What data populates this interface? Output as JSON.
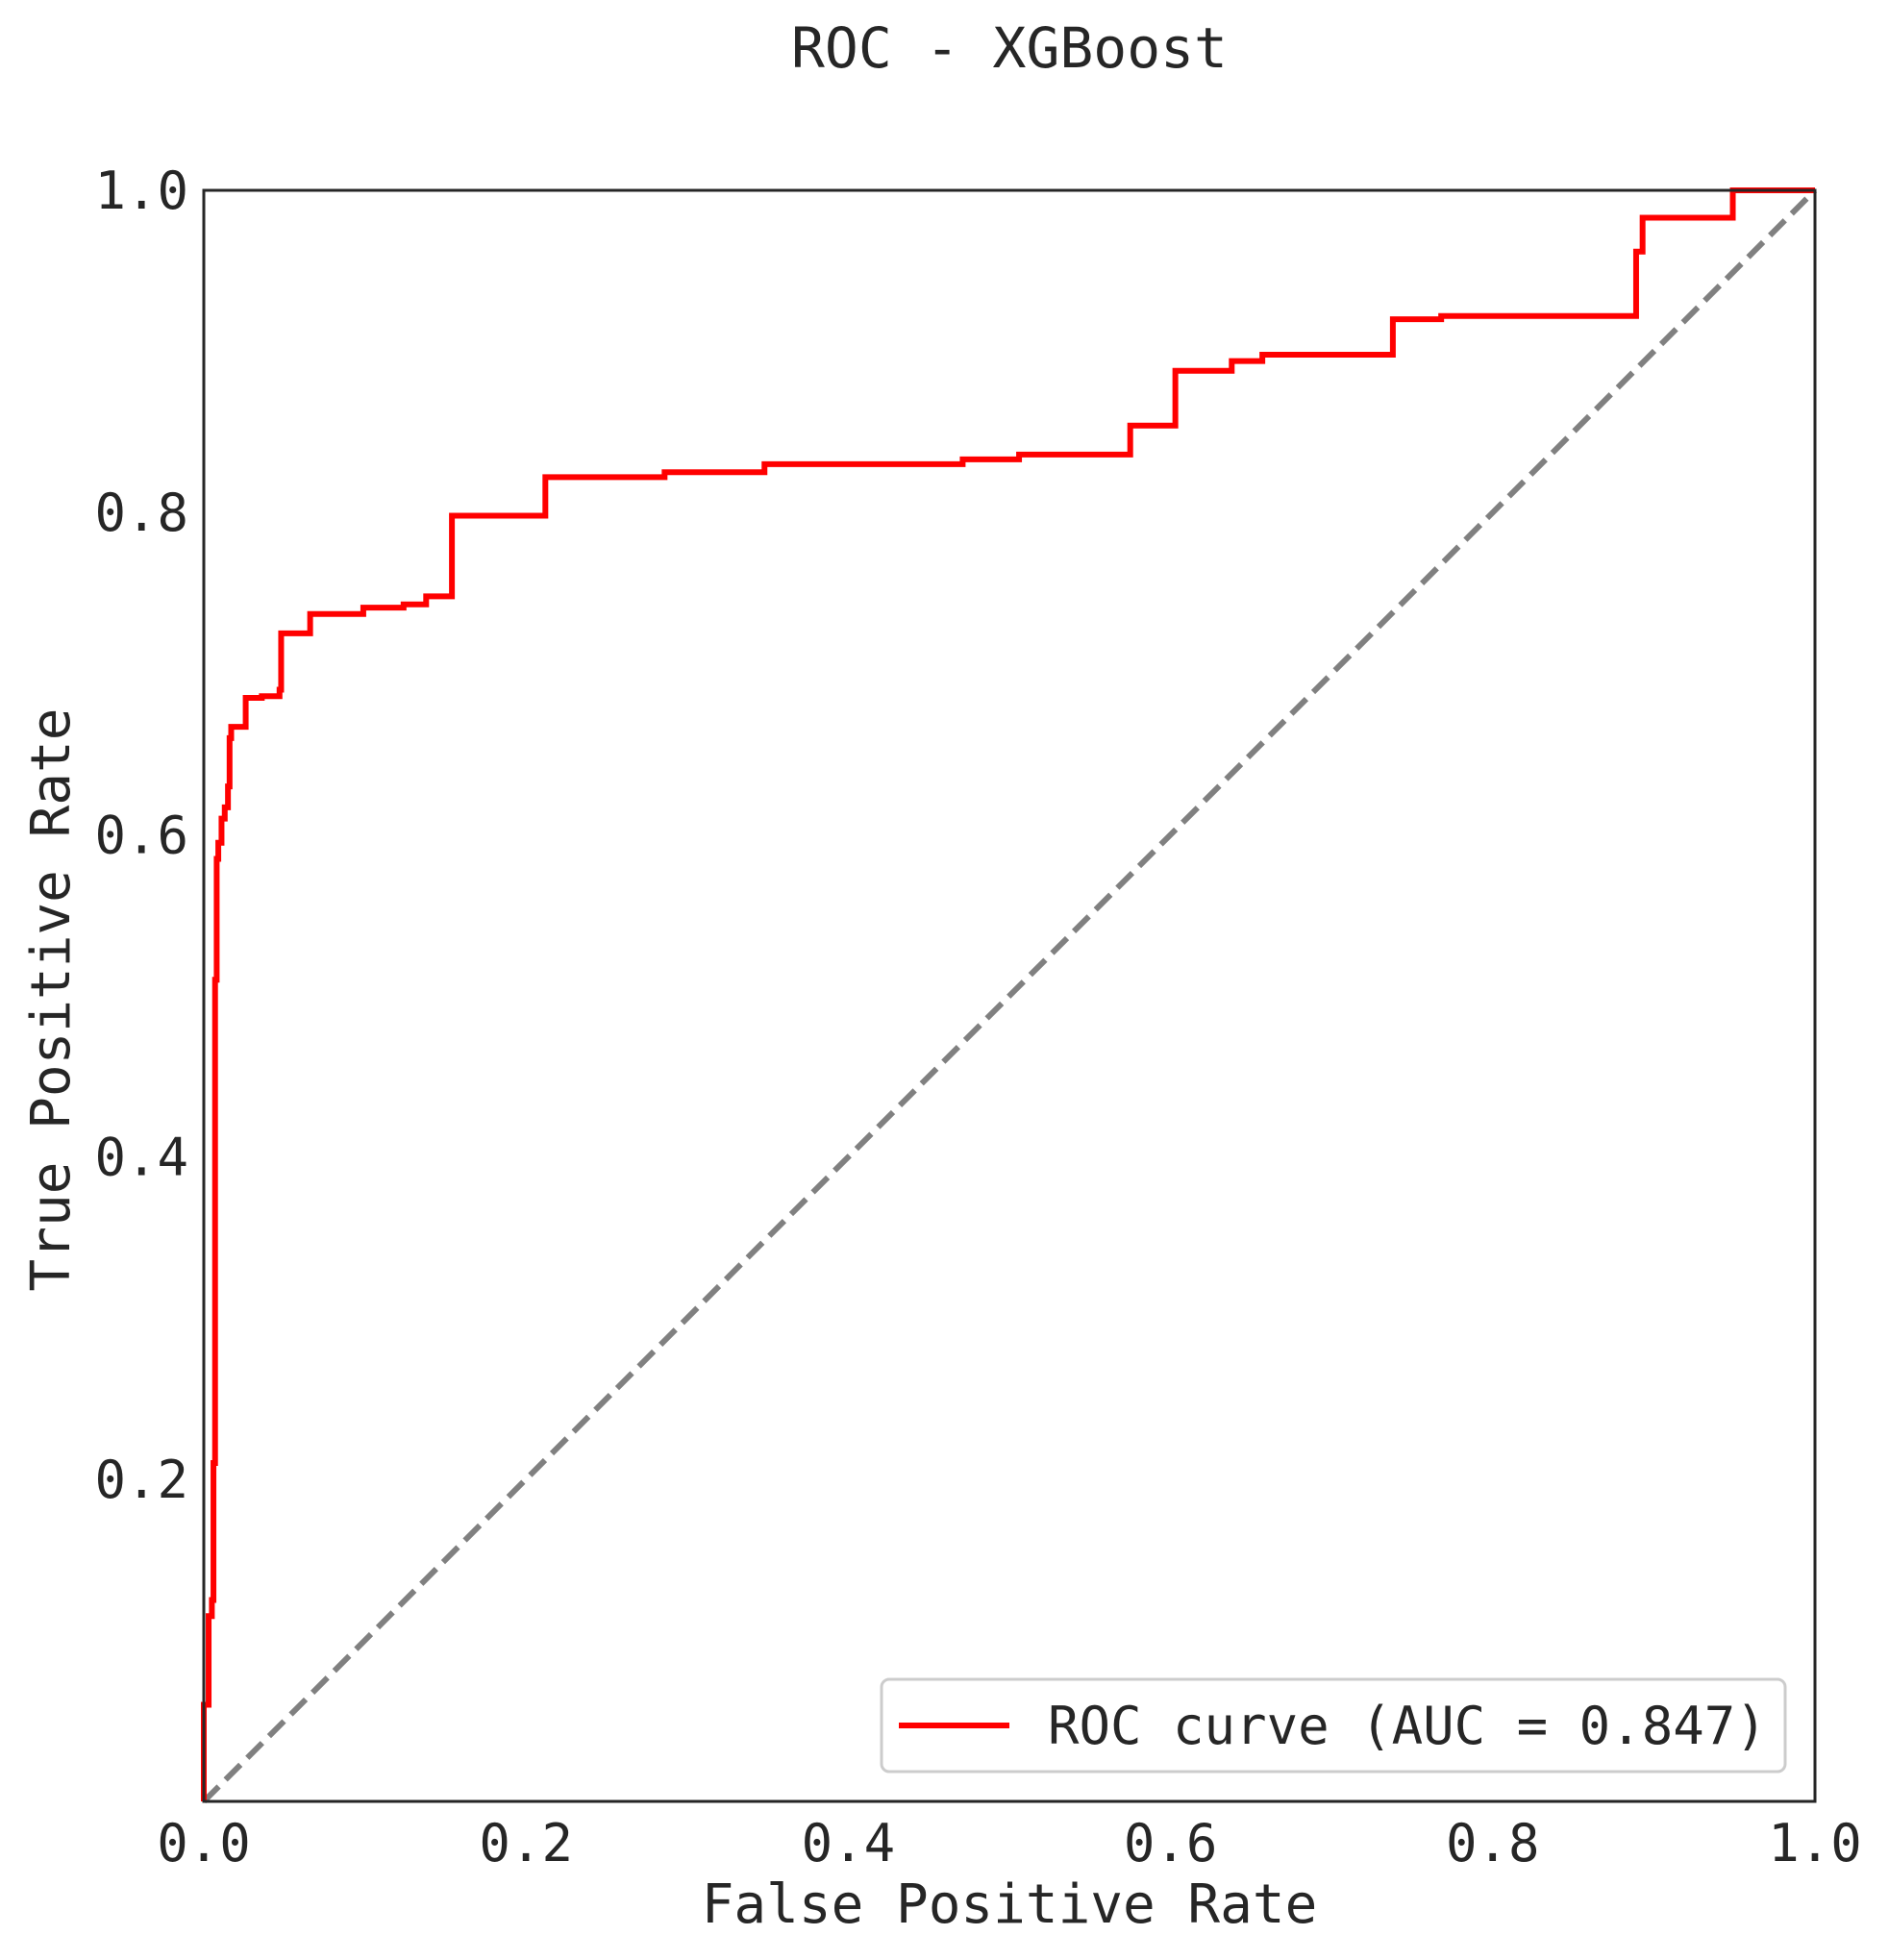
{
  "chart_data": {
    "type": "line",
    "title": "ROC - XGBoost",
    "xlabel": "False Positive Rate",
    "ylabel": "True Positive Rate",
    "xlim": [
      0.0,
      1.0
    ],
    "ylim": [
      0.0,
      1.0
    ],
    "xticks": [
      "0.0",
      "0.2",
      "0.4",
      "0.6",
      "0.8",
      "1.0"
    ],
    "yticks": [
      "0.2",
      "0.4",
      "0.6",
      "0.8",
      "1.0"
    ],
    "grid": false,
    "legend_position": "lower right",
    "series": [
      {
        "name": "ROC curve (AUC = 0.847)",
        "color": "#ff0000",
        "style": "solid",
        "x": [
          0.0,
          0.0,
          0.003,
          0.003,
          0.005,
          0.005,
          0.006,
          0.006,
          0.007,
          0.007,
          0.008,
          0.008,
          0.009,
          0.009,
          0.011,
          0.011,
          0.013,
          0.013,
          0.015,
          0.015,
          0.016,
          0.016,
          0.017,
          0.017,
          0.026,
          0.026,
          0.036,
          0.036,
          0.047,
          0.047,
          0.048,
          0.048,
          0.066,
          0.066,
          0.099,
          0.099,
          0.124,
          0.124,
          0.138,
          0.138,
          0.154,
          0.154,
          0.212,
          0.212,
          0.286,
          0.286,
          0.348,
          0.348,
          0.471,
          0.471,
          0.506,
          0.506,
          0.575,
          0.575,
          0.603,
          0.603,
          0.638,
          0.638,
          0.657,
          0.657,
          0.738,
          0.738,
          0.768,
          0.768,
          0.889,
          0.889,
          0.893,
          0.893,
          0.949,
          0.949,
          1.0
        ],
        "y": [
          0.0,
          0.06,
          0.06,
          0.115,
          0.115,
          0.125,
          0.125,
          0.21,
          0.21,
          0.51,
          0.51,
          0.585,
          0.585,
          0.595,
          0.595,
          0.61,
          0.61,
          0.617,
          0.617,
          0.63,
          0.63,
          0.66,
          0.66,
          0.667,
          0.667,
          0.685,
          0.685,
          0.686,
          0.686,
          0.69,
          0.69,
          0.725,
          0.725,
          0.737,
          0.737,
          0.741,
          0.741,
          0.743,
          0.743,
          0.748,
          0.748,
          0.798,
          0.798,
          0.822,
          0.822,
          0.825,
          0.825,
          0.83,
          0.83,
          0.833,
          0.833,
          0.836,
          0.836,
          0.854,
          0.854,
          0.888,
          0.888,
          0.894,
          0.894,
          0.898,
          0.898,
          0.92,
          0.92,
          0.922,
          0.922,
          0.962,
          0.962,
          0.983,
          0.983,
          1.0,
          1.0
        ]
      },
      {
        "color": "#808080",
        "style": "dashed",
        "x": [
          0.0,
          1.0
        ],
        "y": [
          0.0,
          1.0
        ]
      }
    ]
  }
}
